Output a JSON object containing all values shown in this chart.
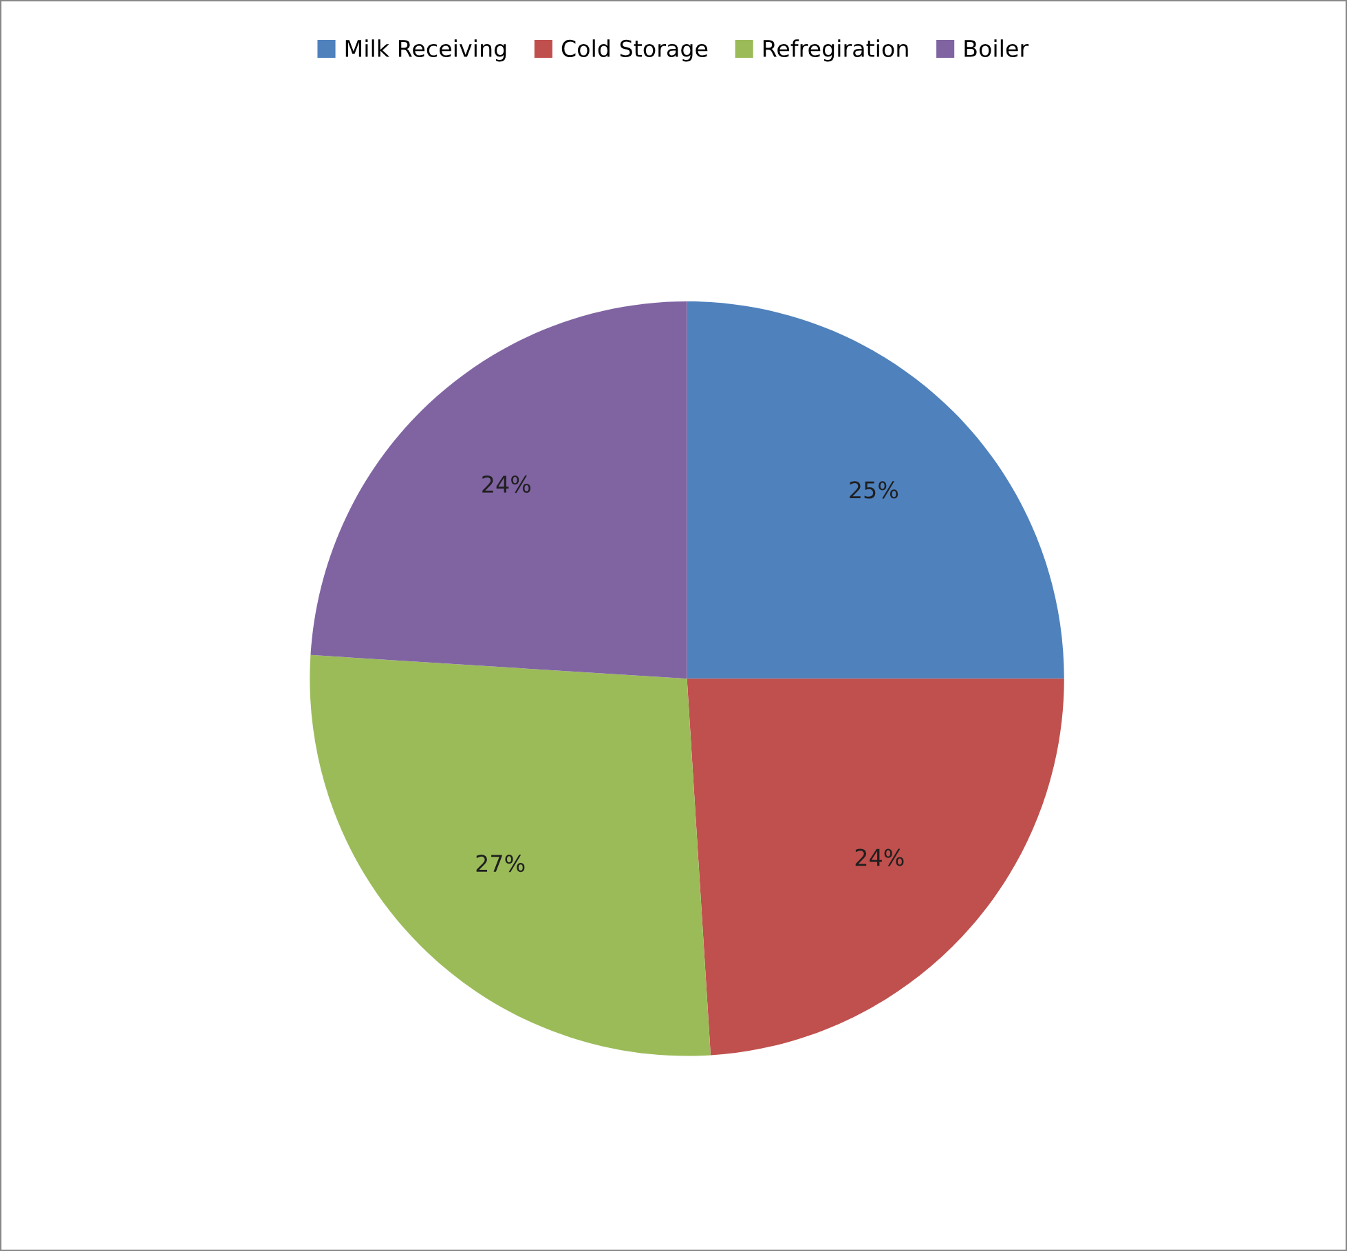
{
  "chart_data": {
    "type": "pie",
    "categories": [
      "Milk Receiving",
      "Cold Storage",
      "Refregiration",
      "Boiler"
    ],
    "values": [
      25,
      24,
      27,
      24
    ],
    "colors": [
      "#4f81bd",
      "#c0504d",
      "#9bbb59",
      "#8064a2"
    ],
    "value_labels": [
      "25%",
      "24%",
      "27%",
      "24%"
    ],
    "legend": "top"
  }
}
